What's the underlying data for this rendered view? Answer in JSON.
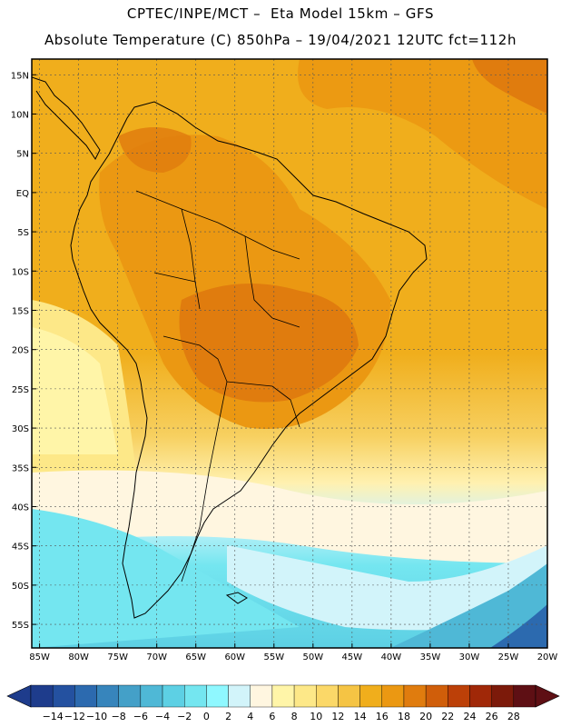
{
  "header": {
    "line1": "CPTEC/INPE/MCT –  Eta Model 15km – GFS",
    "line2": "Absolute Temperature (C) 850hPa – 19/04/2021 12UTC fct=112h"
  },
  "map": {
    "lat_labels": [
      "15N",
      "10N",
      "5N",
      "EQ",
      "5S",
      "10S",
      "15S",
      "20S",
      "25S",
      "30S",
      "35S",
      "40S",
      "45S",
      "50S",
      "55S"
    ],
    "lon_labels": [
      "85W",
      "80W",
      "75W",
      "70W",
      "65W",
      "60W",
      "55W",
      "50W",
      "45W",
      "40W",
      "35W",
      "30W",
      "25W",
      "20W"
    ],
    "lat_extent": [
      -58,
      17
    ],
    "lon_extent": [
      -86,
      -20
    ]
  },
  "colorbar": {
    "labels": [
      "-14",
      "-12",
      "-10",
      "-8",
      "-6",
      "-4",
      "-2",
      "0",
      "2",
      "4",
      "6",
      "8",
      "10",
      "12",
      "14",
      "16",
      "18",
      "20",
      "22",
      "24",
      "26",
      "28"
    ],
    "colors": [
      "#1e3c8c",
      "#2451a0",
      "#2c6aaf",
      "#3785bc",
      "#44a0c8",
      "#4fb8d6",
      "#5dd0e4",
      "#74e6f0",
      "#8ff8ff",
      "#d2f4fa",
      "#fff6e0",
      "#fff5a8",
      "#fde888",
      "#fbd868",
      "#f5c444",
      "#f0ae1c",
      "#eb9812",
      "#e07c0e",
      "#d05e0a",
      "#bc4008",
      "#a02808",
      "#7c1a0a",
      "#5e0f14"
    ],
    "unit": "C"
  }
}
